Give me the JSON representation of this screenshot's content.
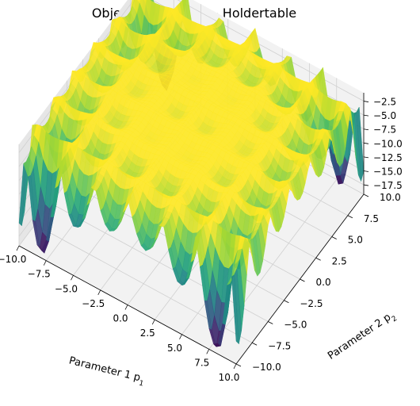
{
  "chart_data": {
    "type": "surface3d",
    "title": "Objective Function - Holdertable",
    "xlabel": "Parameter 1 p",
    "xlabel_sub": "1",
    "ylabel": "Parameter 2 p",
    "ylabel_sub": "2",
    "zlabel": "",
    "function": "holdertable",
    "formula": "-|sin(x)*cos(y)*exp(|1 - sqrt(x^2+y^2)/pi|)|",
    "xlim": [
      -10,
      10
    ],
    "ylim": [
      -10,
      10
    ],
    "zlim": [
      -19.2,
      -1.0
    ],
    "x_ticks": [
      -10.0,
      -7.5,
      -5.0,
      -2.5,
      0.0,
      2.5,
      5.0,
      7.5,
      10.0
    ],
    "x_tick_labels": [
      "−10.0",
      "−7.5",
      "−5.0",
      "−2.5",
      "0.0",
      "2.5",
      "5.0",
      "7.5",
      "10.0"
    ],
    "y_ticks": [
      -10.0,
      -7.5,
      -5.0,
      -2.5,
      0.0,
      2.5,
      5.0,
      7.5,
      10.0
    ],
    "y_tick_labels": [
      "−10.0",
      "−7.5",
      "−5.0",
      "−2.5",
      "0.0",
      "2.5",
      "5.0",
      "7.5",
      "10.0"
    ],
    "z_ticks": [
      -17.5,
      -15.0,
      -12.5,
      -10.0,
      -7.5,
      -5.0,
      -2.5
    ],
    "z_tick_labels": [
      "−17.5",
      "−15.0",
      "−12.5",
      "−10.0",
      "−7.5",
      "−5.0",
      "−2.5"
    ],
    "colormap": "viridis",
    "colors": {
      "pane": "#f2f2f2",
      "pane_side": "#e6e6e6",
      "grid": "#d0d0d0",
      "axis": "#000000"
    },
    "grid": true,
    "global_minima": [
      {
        "x": 8.055,
        "y": 9.665,
        "z": -19.2085
      },
      {
        "x": -8.055,
        "y": 9.665,
        "z": -19.2085
      },
      {
        "x": 8.055,
        "y": -9.665,
        "z": -19.2085
      },
      {
        "x": -8.055,
        "y": -9.665,
        "z": -19.2085
      }
    ]
  }
}
